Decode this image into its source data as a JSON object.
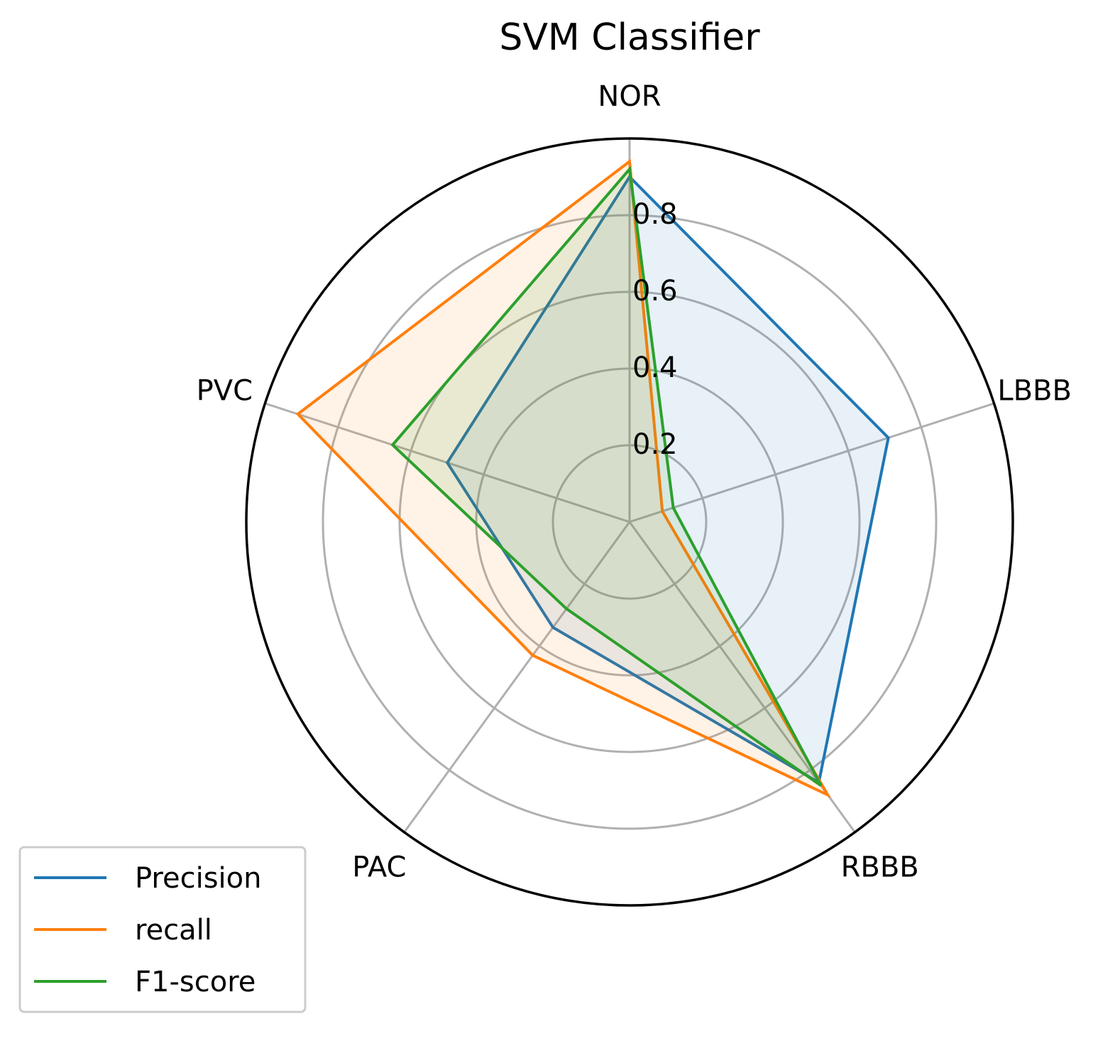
{
  "chart_data": {
    "type": "radar",
    "title": "SVM Classifier",
    "categories": [
      "NOR",
      "LBBB",
      "RBBB",
      "PAC",
      "PVC"
    ],
    "rlim": [
      0,
      1.0
    ],
    "r_ticks": [
      {
        "value": 0.2,
        "label": "0.2"
      },
      {
        "value": 0.4,
        "label": "0.4"
      },
      {
        "value": 0.6,
        "label": "0.6"
      },
      {
        "value": 0.8,
        "label": "0.8"
      }
    ],
    "grid": true,
    "legend_position": "lower-left",
    "series": [
      {
        "name": "Precision",
        "color": "#1f77b4",
        "values": [
          0.9,
          0.71,
          0.84,
          0.34,
          0.5
        ]
      },
      {
        "name": "recall",
        "color": "#ff7f0e",
        "values": [
          0.94,
          0.09,
          0.88,
          0.43,
          0.91
        ]
      },
      {
        "name": "F1-score",
        "color": "#2ca02c",
        "values": [
          0.92,
          0.12,
          0.85,
          0.28,
          0.65
        ]
      }
    ]
  }
}
